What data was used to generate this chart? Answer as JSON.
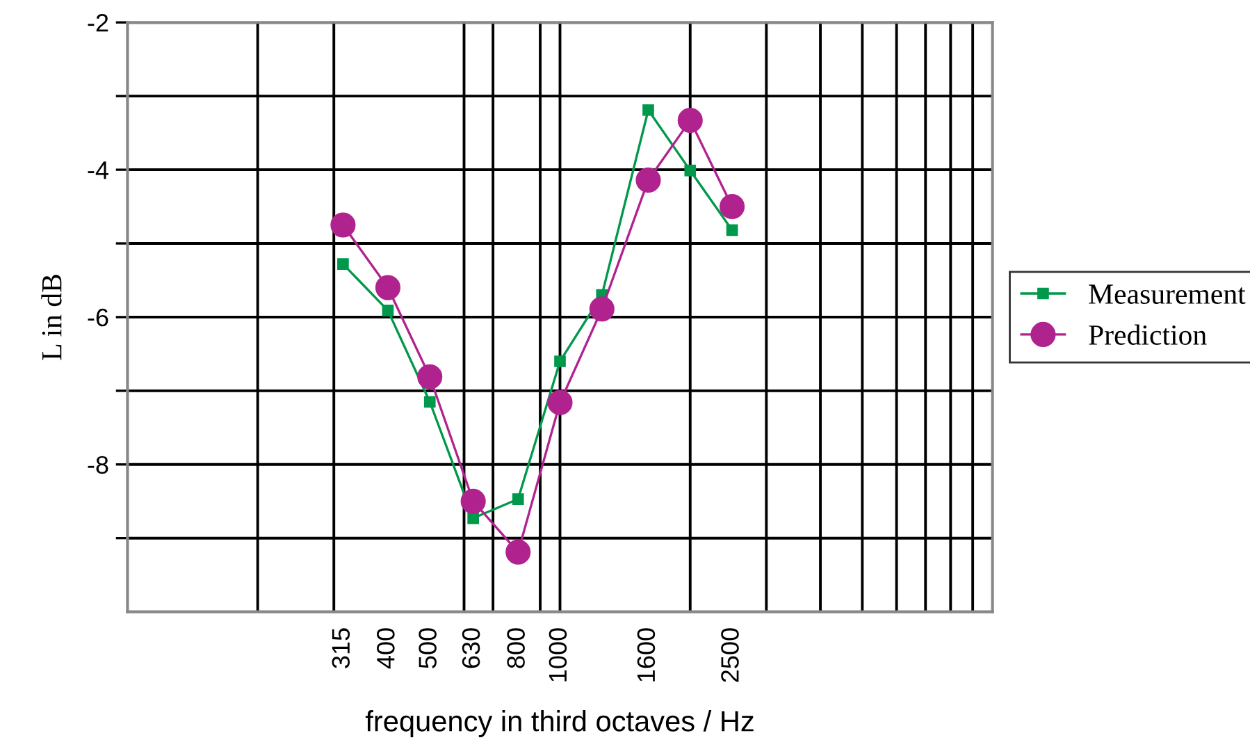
{
  "chart_data": {
    "type": "line",
    "xlabel": "frequency in third octaves / Hz",
    "ylabel": "L in dB",
    "x": [
      315,
      400,
      500,
      630,
      800,
      1000,
      1250,
      1600,
      2000,
      2500
    ],
    "series": [
      {
        "name": "Measurement",
        "color": "#00984a",
        "marker": "square",
        "values": [
          -5.28,
          -5.91,
          -7.15,
          -8.73,
          -8.47,
          -6.6,
          -5.7,
          -3.19,
          -4.01,
          -4.82
        ]
      },
      {
        "name": "Prediction",
        "color": "#b0238f",
        "marker": "circle",
        "values": [
          -4.75,
          -5.6,
          -6.81,
          -8.5,
          -9.19,
          -7.16,
          -5.89,
          -4.14,
          -3.33,
          -4.5
        ]
      }
    ],
    "log": "x",
    "xlim": [
      100,
      10000
    ],
    "xticks": [
      {
        "value": 200,
        "label": null
      },
      {
        "value": 300,
        "label": null
      },
      315,
      400,
      500,
      {
        "value": 600,
        "label": null
      },
      630,
      {
        "value": 700,
        "label": null
      },
      800,
      {
        "value": 900,
        "label": null
      },
      1000,
      1600,
      {
        "value": 2000,
        "label": null
      },
      2500,
      {
        "value": 3000,
        "label": null
      },
      {
        "value": 4000,
        "label": null
      },
      {
        "value": 5000,
        "label": null
      },
      {
        "value": 6000,
        "label": null
      },
      {
        "value": 7000,
        "label": null
      },
      {
        "value": 8000,
        "label": null
      },
      {
        "value": 9000,
        "label": null
      }
    ],
    "ylim": [
      -10,
      -2
    ],
    "yticks": [
      -2,
      {
        "value": -3,
        "label": null
      },
      -4,
      {
        "value": -5,
        "label": null
      },
      -6,
      {
        "value": -7,
        "label": null
      },
      -8,
      {
        "value": -9,
        "label": null
      }
    ],
    "grid": true,
    "legend": "right",
    "line_style": "solid"
  }
}
